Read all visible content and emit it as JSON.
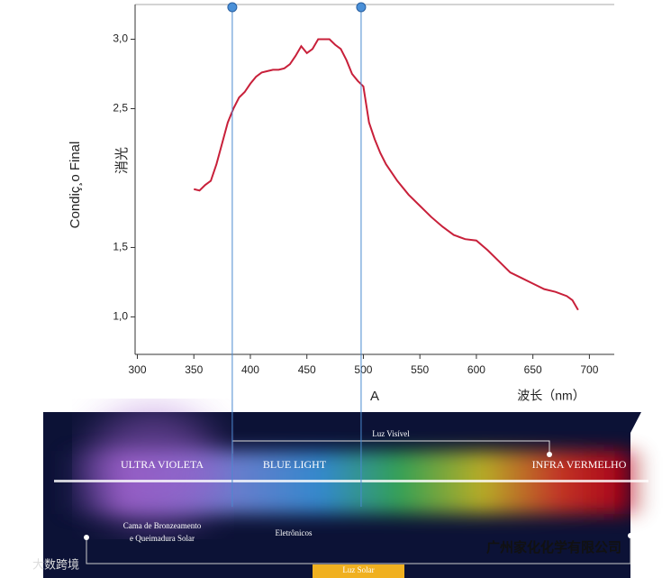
{
  "chart_data": {
    "type": "line",
    "y_label": "Condiç¸o Final",
    "y_label_2": "消光",
    "x_label": "A",
    "x_label_2": "波长（nm）",
    "x": [
      350,
      355,
      360,
      365,
      370,
      375,
      380,
      385,
      390,
      395,
      400,
      405,
      410,
      415,
      420,
      425,
      430,
      435,
      440,
      445,
      450,
      455,
      460,
      465,
      470,
      475,
      480,
      485,
      490,
      495,
      500,
      505,
      510,
      515,
      520,
      530,
      540,
      550,
      560,
      570,
      580,
      590,
      600,
      610,
      620,
      630,
      640,
      650,
      660,
      670,
      680,
      685,
      690
    ],
    "series": [
      {
        "name": "Condição Final",
        "color": "#c8203a",
        "values": [
          1.92,
          1.91,
          1.95,
          1.98,
          2.1,
          2.25,
          2.4,
          2.5,
          2.58,
          2.62,
          2.68,
          2.73,
          2.76,
          2.77,
          2.78,
          2.78,
          2.79,
          2.82,
          2.88,
          2.95,
          2.9,
          2.93,
          3.0,
          3.0,
          3.0,
          2.96,
          2.93,
          2.85,
          2.75,
          2.7,
          2.66,
          2.4,
          2.28,
          2.18,
          2.1,
          1.98,
          1.88,
          1.8,
          1.72,
          1.65,
          1.59,
          1.56,
          1.55,
          1.48,
          1.4,
          1.32,
          1.28,
          1.24,
          1.2,
          1.18,
          1.15,
          1.12,
          1.05
        ]
      }
    ],
    "xlim": [
      298,
      722
    ],
    "xticks": [
      300,
      350,
      400,
      450,
      500,
      550,
      600,
      650,
      700
    ],
    "ylim": [
      0.73,
      3.25
    ],
    "yticks": [
      {
        "value": 1,
        "label": "1,0"
      },
      {
        "value": 1.5,
        "label": "1,5"
      },
      {
        "value": 2.5,
        "label": "2,5"
      },
      {
        "value": 3,
        "label": "3,0"
      }
    ],
    "reference_lines": [
      384,
      498
    ],
    "spectrum": {
      "visible": "Luz Visível",
      "uv": "ULTRA VIOLETA",
      "blue": "BLUE LIGHT",
      "ir": "INFRA VERMELHO",
      "uv_note_1": "Cama de Bronzeamento",
      "uv_note_2": "e Queimadura Solar",
      "blue_note": "Eletrônicos",
      "sun": "Luz Solar"
    },
    "watermark": "广州家化化学有限公司",
    "watermark_2": "大数跨境"
  }
}
